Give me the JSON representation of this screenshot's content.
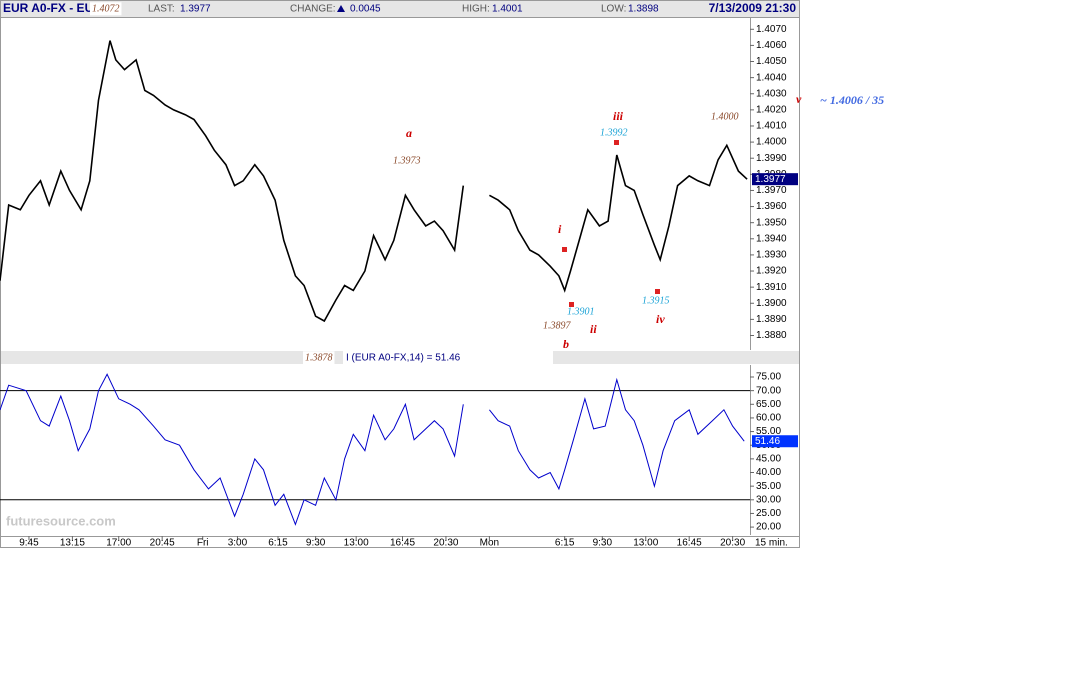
{
  "header": {
    "symbol": "EUR A0-FX - EUR",
    "last_label": "LAST:",
    "last": "1.3977",
    "change_label": "CHANGE:",
    "change": "0.0045",
    "high_label": "HIGH:",
    "high": "1.4001",
    "low_label": "LOW:",
    "low": "1.3898",
    "datetime": "7/13/2009 21:30"
  },
  "logo": "futuresource.com",
  "annotations": [
    {
      "text": "1.4072",
      "color": "#8b4a2b"
    },
    {
      "text": "a",
      "color": "#cc0000"
    },
    {
      "text": "1.3973",
      "color": "#8b4a2b"
    },
    {
      "text": "1.3878",
      "color": "#8b4a2b"
    },
    {
      "text": "i",
      "color": "#cc0000"
    },
    {
      "text": "1.3901",
      "color": "#1aa3d6"
    },
    {
      "text": "1.3897",
      "color": "#8b4a2b"
    },
    {
      "text": "ii",
      "color": "#cc0000"
    },
    {
      "text": "b",
      "color": "#cc0000"
    },
    {
      "text": "iii",
      "color": "#cc0000"
    },
    {
      "text": "1.3992",
      "color": "#1aa3d6"
    },
    {
      "text": "1.3915",
      "color": "#1aa3d6"
    },
    {
      "text": "iv",
      "color": "#cc0000"
    },
    {
      "text": "1.4000",
      "color": "#8b4a2b"
    },
    {
      "text": "v",
      "color": "#cc0000"
    },
    {
      "text": "~ 1.4006 / 35",
      "color": "#4169e1"
    }
  ],
  "chart_data": [
    {
      "type": "line",
      "color": "#000000",
      "x": [
        0,
        3,
        7,
        10,
        14,
        17,
        21,
        24,
        28,
        31,
        34,
        38,
        40,
        43,
        47,
        50,
        53,
        57,
        60,
        64,
        67,
        71,
        74,
        78,
        81,
        84,
        88,
        91,
        95,
        98,
        102,
        105,
        109,
        112,
        116,
        119,
        122,
        126,
        129,
        133,
        136,
        140,
        143,
        147,
        150,
        153,
        157,
        160,
        162,
        169,
        172,
        176,
        179,
        183,
        186,
        190,
        193,
        195,
        197,
        200,
        203,
        207,
        210,
        213,
        216,
        219,
        222,
        226,
        228,
        231,
        234,
        238,
        241,
        245,
        248,
        251,
        255,
        258
      ],
      "values": [
        1.3914,
        1.3961,
        1.3958,
        1.3967,
        1.3976,
        1.3961,
        1.3982,
        1.397,
        1.3958,
        1.3976,
        1.4026,
        1.4063,
        1.4051,
        1.4045,
        1.4051,
        1.4032,
        1.4029,
        1.4023,
        1.402,
        1.4017,
        1.4014,
        1.4004,
        1.3995,
        1.3986,
        1.3973,
        1.3976,
        1.3986,
        1.3979,
        1.3964,
        1.3939,
        1.3917,
        1.3911,
        1.3892,
        1.3889,
        1.3902,
        1.3911,
        1.3908,
        1.392,
        1.3942,
        1.3927,
        1.3939,
        1.3967,
        1.3958,
        1.3948,
        1.3951,
        1.3945,
        1.3933,
        1.3973,
        null,
        1.3967,
        1.3964,
        1.3958,
        1.3945,
        1.3933,
        1.393,
        1.3923,
        1.3917,
        1.3908,
        1.392,
        1.3939,
        1.3958,
        1.3948,
        1.3951,
        1.3992,
        1.3973,
        1.397,
        1.3955,
        1.3936,
        1.3927,
        1.3948,
        1.3973,
        1.3979,
        1.3976,
        1.3973,
        1.3989,
        1.3998,
        1.3982,
        1.3977
      ],
      "xlim": [
        0,
        259
      ],
      "ylim": [
        1.3871,
        1.4077
      ],
      "yticks": [
        {
          "value": 1.388,
          "label": "1.3880"
        },
        {
          "value": 1.389,
          "label": "1.3890"
        },
        {
          "value": 1.39,
          "label": "1.3900"
        },
        {
          "value": 1.391,
          "label": "1.3910"
        },
        {
          "value": 1.392,
          "label": "1.3920"
        },
        {
          "value": 1.393,
          "label": "1.3930"
        },
        {
          "value": 1.394,
          "label": "1.3940"
        },
        {
          "value": 1.395,
          "label": "1.3950"
        },
        {
          "value": 1.396,
          "label": "1.3960"
        },
        {
          "value": 1.397,
          "label": "1.3970"
        },
        {
          "value": 1.398,
          "label": "1.3980"
        },
        {
          "value": 1.399,
          "label": "1.3990"
        },
        {
          "value": 1.4,
          "label": "1.4000"
        },
        {
          "value": 1.401,
          "label": "1.4010"
        },
        {
          "value": 1.402,
          "label": "1.4020"
        },
        {
          "value": 1.403,
          "label": "1.4030"
        },
        {
          "value": 1.404,
          "label": "1.4040"
        },
        {
          "value": 1.405,
          "label": "1.4050"
        },
        {
          "value": 1.406,
          "label": "1.4060"
        },
        {
          "value": 1.407,
          "label": "1.4070"
        }
      ],
      "current": {
        "value": 1.3977,
        "label": "1.3977"
      },
      "badge_color": "#000080"
    },
    {
      "type": "line",
      "title": "I (EUR A0-FX,14) = 51.46",
      "color": "#0000cc",
      "x": [
        0,
        3,
        9,
        14,
        17,
        21,
        24,
        27,
        31,
        34,
        37,
        41,
        45,
        48,
        53,
        57,
        62,
        67,
        72,
        76,
        81,
        84,
        88,
        91,
        95,
        98,
        102,
        105,
        109,
        112,
        116,
        119,
        122,
        126,
        129,
        133,
        136,
        140,
        143,
        147,
        150,
        153,
        157,
        160,
        162,
        169,
        172,
        176,
        179,
        183,
        186,
        190,
        193,
        195,
        198,
        202,
        205,
        209,
        213,
        216,
        219,
        222,
        226,
        229,
        233,
        238,
        241,
        246,
        250,
        253,
        257
      ],
      "values": [
        62.9,
        72,
        70,
        59,
        57,
        68,
        59,
        48,
        56,
        70,
        76,
        67,
        65,
        63,
        57,
        52,
        50,
        41,
        34,
        38,
        24,
        32,
        45,
        41,
        28,
        32,
        21,
        30,
        28,
        38,
        30,
        45,
        54,
        48,
        61,
        52,
        56,
        65,
        52,
        56,
        59,
        56,
        46,
        65,
        null,
        63,
        59,
        57,
        48,
        41,
        38,
        40,
        34,
        41,
        52,
        67,
        56,
        57,
        74,
        63,
        59,
        50,
        35,
        48,
        59,
        63,
        54,
        59,
        63,
        57,
        51.46
      ],
      "xlim": [
        0,
        259
      ],
      "ylim": [
        17.1,
        79.4
      ],
      "yticks": [
        {
          "value": 20,
          "label": "20.00"
        },
        {
          "value": 25,
          "label": "25.00"
        },
        {
          "value": 30,
          "label": "30.00"
        },
        {
          "value": 35,
          "label": "35.00"
        },
        {
          "value": 40,
          "label": "40.00"
        },
        {
          "value": 45,
          "label": "45.00"
        },
        {
          "value": 50,
          "label": "50.00"
        },
        {
          "value": 55,
          "label": "55.00"
        },
        {
          "value": 60,
          "label": "60.00"
        },
        {
          "value": 65,
          "label": "65.00"
        },
        {
          "value": 70,
          "label": "70.00"
        },
        {
          "value": 75,
          "label": "75.00"
        }
      ],
      "reference_lines": [
        70,
        30
      ],
      "current": {
        "value": 51.46,
        "label": "51.46"
      },
      "badge_color": "#0033ff",
      "xticks": [
        {
          "value": 10,
          "label": "9:45"
        },
        {
          "value": 25,
          "label": "13:15"
        },
        {
          "value": 41,
          "label": "17:00"
        },
        {
          "value": 56,
          "label": "20:45"
        },
        {
          "value": 70,
          "label": "Fri"
        },
        {
          "value": 82,
          "label": "3:00"
        },
        {
          "value": 96,
          "label": "6:15"
        },
        {
          "value": 109,
          "label": "9:30"
        },
        {
          "value": 123,
          "label": "13:00"
        },
        {
          "value": 139,
          "label": "16:45"
        },
        {
          "value": 154,
          "label": "20:30"
        },
        {
          "value": 169,
          "label": "Mon"
        },
        {
          "value": 195,
          "label": "6:15"
        },
        {
          "value": 208,
          "label": "9:30"
        },
        {
          "value": 223,
          "label": "13:00"
        },
        {
          "value": 238,
          "label": "16:45"
        },
        {
          "value": 253,
          "label": "20:30"
        }
      ],
      "x_label": "15 min."
    }
  ]
}
